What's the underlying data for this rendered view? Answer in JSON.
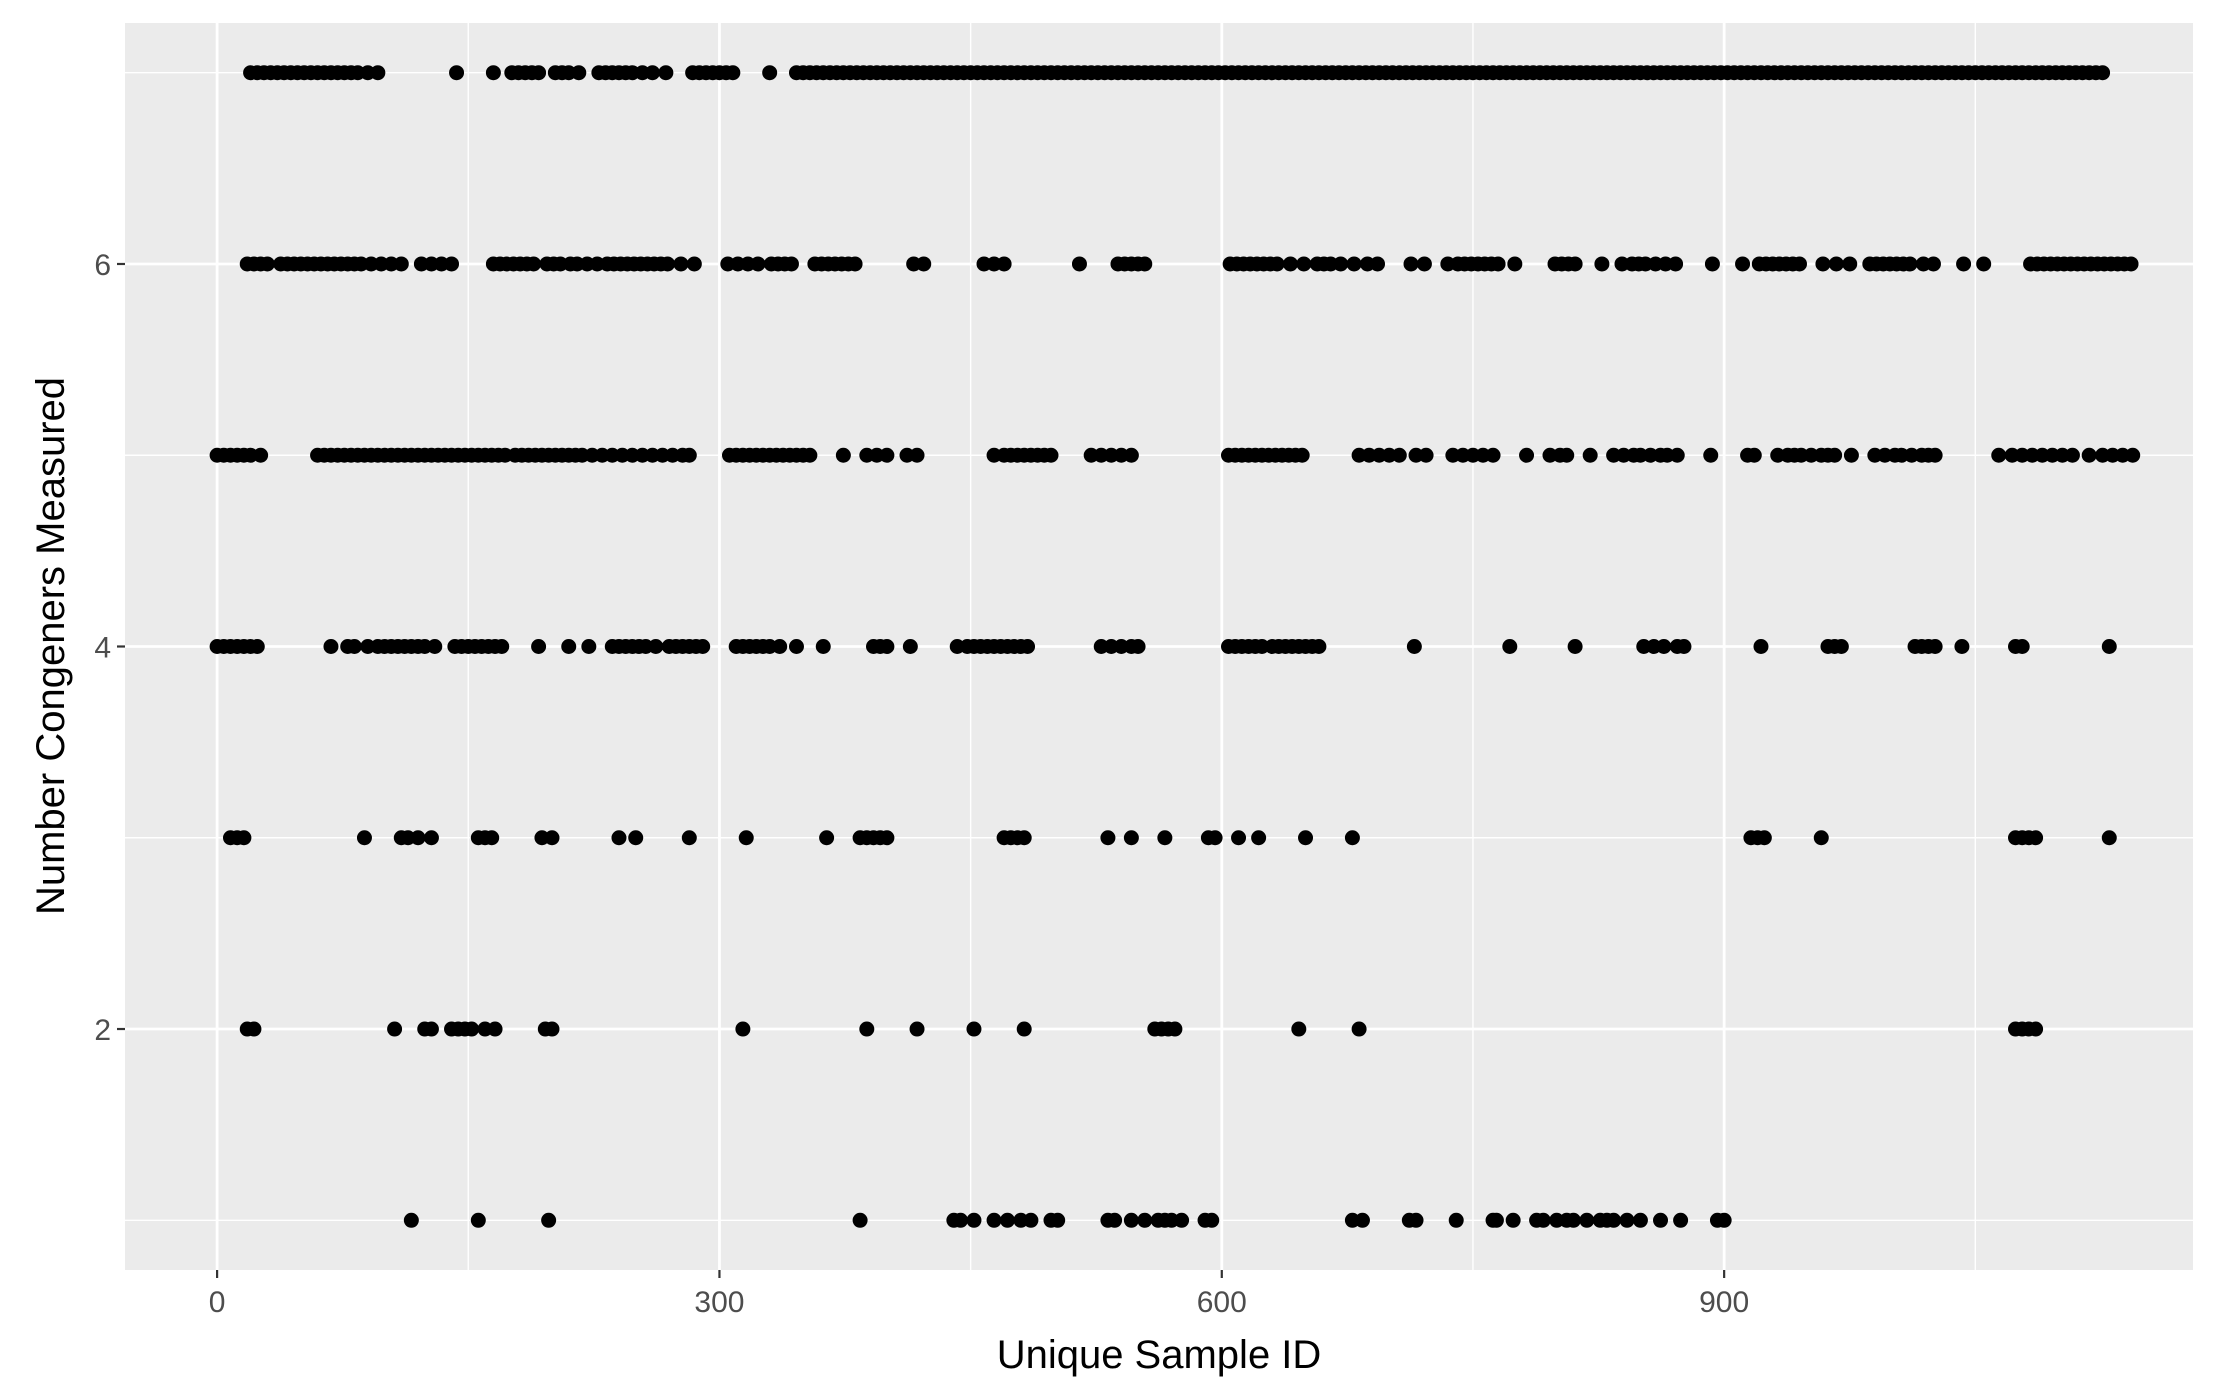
{
  "chart_data": {
    "type": "scatter",
    "title": "",
    "xlabel": "Unique Sample ID",
    "ylabel": "Number Congeners Measured",
    "xlim": [
      -55,
      1180
    ],
    "ylim": [
      0.74,
      7.26
    ],
    "x_ticks": [
      0,
      300,
      600,
      900
    ],
    "x_tick_labels": [
      "0",
      "300",
      "600",
      "900"
    ],
    "y_ticks": [
      2,
      4,
      6
    ],
    "y_tick_labels": [
      "2",
      "4",
      "6"
    ],
    "grid": true,
    "legend": "none",
    "colors": {
      "panel": "#ebebeb",
      "grid": "#ffffff",
      "point": "#000000",
      "tick_text": "#4d4d4d"
    },
    "series": [
      {
        "y": 7,
        "x": [
          20,
          24,
          28,
          32,
          36,
          40,
          44,
          48,
          52,
          56,
          60,
          64,
          68,
          72,
          76,
          80,
          84,
          90,
          96,
          143,
          165,
          176,
          180,
          184,
          188,
          192,
          202,
          206,
          210,
          216,
          228,
          232,
          236,
          240,
          244,
          248,
          254,
          260,
          268,
          284,
          288,
          292,
          296,
          300,
          304,
          308,
          330,
          346,
          350,
          354,
          358,
          362,
          366,
          370,
          374,
          378,
          382,
          386,
          390,
          394,
          398,
          402,
          406,
          410,
          414,
          418,
          422,
          426,
          430,
          434,
          438,
          442,
          446,
          450,
          454,
          458,
          462,
          466,
          470,
          474,
          478,
          482,
          486,
          490,
          494,
          498,
          502,
          506,
          510,
          514,
          518,
          522,
          526,
          530,
          534,
          538,
          542,
          546,
          550,
          554,
          558,
          562,
          566,
          570,
          574,
          578,
          582,
          586,
          590,
          594,
          598,
          602,
          606,
          610,
          614,
          618,
          622,
          626,
          630,
          634,
          638,
          642,
          646,
          650,
          654,
          658,
          662,
          666,
          670,
          674,
          678,
          682,
          686,
          690,
          694,
          698,
          702,
          706,
          710,
          714,
          718,
          722,
          726,
          730,
          734,
          738,
          742,
          746,
          750,
          754,
          758,
          762,
          766,
          770,
          774,
          778,
          782,
          786,
          790,
          794,
          798,
          802,
          806,
          810,
          814,
          818,
          822,
          826,
          830,
          834,
          838,
          842,
          846,
          850,
          854,
          858,
          862,
          866,
          870,
          874,
          878,
          882,
          886,
          890,
          894,
          898,
          902,
          906,
          910,
          914,
          918,
          922,
          926,
          930,
          934,
          938,
          942,
          946,
          950,
          954,
          958,
          962,
          966,
          970,
          974,
          978,
          982,
          986,
          990,
          994,
          998,
          1002,
          1006,
          1010,
          1014,
          1018,
          1022,
          1026,
          1030,
          1034,
          1038,
          1042,
          1046,
          1050,
          1054,
          1058,
          1062,
          1066,
          1070,
          1074,
          1078,
          1082,
          1086,
          1090,
          1094,
          1098,
          1102,
          1106,
          1110,
          1114,
          1118,
          1122,
          1126
        ]
      },
      {
        "y": 6,
        "x": [
          18,
          22,
          26,
          30,
          38,
          42,
          46,
          50,
          54,
          58,
          62,
          66,
          70,
          74,
          78,
          82,
          86,
          92,
          98,
          104,
          110,
          122,
          128,
          134,
          140,
          165,
          169,
          173,
          177,
          181,
          185,
          189,
          197,
          201,
          205,
          211,
          215,
          221,
          227,
          233,
          237,
          241,
          245,
          249,
          253,
          257,
          261,
          265,
          269,
          277,
          285,
          305,
          311,
          317,
          323,
          331,
          335,
          339,
          343,
          357,
          361,
          365,
          369,
          373,
          377,
          381,
          416,
          422,
          458,
          464,
          470,
          515,
          538,
          542,
          546,
          550,
          554,
          605,
          609,
          613,
          617,
          621,
          625,
          629,
          633,
          641,
          649,
          657,
          661,
          665,
          671,
          679,
          687,
          693,
          713,
          721,
          735,
          741,
          745,
          749,
          753,
          757,
          761,
          765,
          775,
          799,
          803,
          807,
          811,
          827,
          839,
          845,
          849,
          853,
          859,
          865,
          871,
          893,
          911,
          921,
          925,
          929,
          933,
          937,
          941,
          945,
          959,
          967,
          975,
          987,
          991,
          995,
          999,
          1003,
          1007,
          1011,
          1019,
          1025,
          1043,
          1055,
          1083,
          1087,
          1091,
          1095,
          1099,
          1103,
          1107,
          1111,
          1115,
          1119,
          1123,
          1127,
          1131,
          1135,
          1139,
          1143
        ]
      },
      {
        "y": 5,
        "x": [
          0,
          4,
          8,
          12,
          16,
          20,
          26,
          60,
          64,
          68,
          72,
          76,
          80,
          84,
          88,
          92,
          96,
          100,
          104,
          108,
          112,
          116,
          120,
          124,
          128,
          132,
          136,
          140,
          144,
          148,
          152,
          156,
          160,
          164,
          168,
          172,
          178,
          182,
          186,
          190,
          194,
          198,
          202,
          206,
          210,
          214,
          218,
          224,
          230,
          236,
          242,
          248,
          254,
          260,
          266,
          272,
          278,
          282,
          306,
          310,
          314,
          318,
          322,
          326,
          330,
          334,
          338,
          342,
          346,
          350,
          354,
          374,
          388,
          394,
          400,
          412,
          418,
          464,
          470,
          474,
          478,
          482,
          486,
          490,
          494,
          498,
          522,
          528,
          534,
          540,
          546,
          604,
          608,
          612,
          616,
          620,
          624,
          628,
          632,
          636,
          640,
          644,
          648,
          682,
          688,
          694,
          700,
          706,
          716,
          722,
          738,
          744,
          750,
          756,
          762,
          782,
          796,
          802,
          806,
          820,
          834,
          840,
          846,
          850,
          856,
          862,
          866,
          872,
          892,
          914,
          918,
          932,
          938,
          942,
          946,
          952,
          958,
          962,
          966,
          976,
          990,
          996,
          1002,
          1006,
          1012,
          1018,
          1022,
          1026,
          1064,
          1072,
          1078,
          1084,
          1090,
          1096,
          1102,
          1108,
          1118,
          1126,
          1132,
          1138,
          1144
        ]
      },
      {
        "y": 4,
        "x": [
          0,
          4,
          8,
          12,
          16,
          20,
          24,
          68,
          78,
          82,
          90,
          96,
          100,
          104,
          108,
          112,
          116,
          120,
          124,
          130,
          142,
          146,
          150,
          154,
          158,
          162,
          166,
          170,
          192,
          210,
          222,
          236,
          240,
          244,
          248,
          252,
          256,
          262,
          270,
          274,
          278,
          282,
          286,
          290,
          310,
          314,
          318,
          322,
          326,
          330,
          336,
          346,
          362,
          392,
          396,
          400,
          414,
          442,
          448,
          452,
          456,
          460,
          464,
          468,
          472,
          476,
          480,
          484,
          528,
          534,
          540,
          546,
          550,
          604,
          608,
          612,
          616,
          620,
          624,
          630,
          634,
          638,
          642,
          646,
          650,
          654,
          658,
          715,
          772,
          811,
          852,
          858,
          864,
          872,
          876,
          922,
          962,
          966,
          970,
          1014,
          1018,
          1022,
          1026,
          1042,
          1074,
          1078,
          1130
        ]
      },
      {
        "y": 3,
        "x": [
          8,
          12,
          16,
          88,
          110,
          114,
          120,
          128,
          156,
          160,
          164,
          194,
          200,
          240,
          250,
          282,
          316,
          364,
          384,
          388,
          392,
          396,
          400,
          470,
          474,
          478,
          482,
          532,
          546,
          566,
          592,
          596,
          610,
          622,
          650,
          678,
          916,
          920,
          924,
          958,
          1074,
          1078,
          1082,
          1086,
          1130
        ]
      },
      {
        "y": 2,
        "x": [
          18,
          22,
          106,
          124,
          128,
          140,
          144,
          148,
          152,
          160,
          166,
          196,
          200,
          314,
          388,
          418,
          452,
          482,
          560,
          564,
          568,
          572,
          646,
          682,
          1074,
          1078,
          1082,
          1086
        ]
      },
      {
        "y": 1,
        "x": [
          116,
          156,
          198,
          384,
          440,
          444,
          452,
          464,
          472,
          480,
          486,
          498,
          502,
          532,
          536,
          546,
          554,
          562,
          566,
          570,
          576,
          590,
          594,
          678,
          684,
          712,
          716,
          740,
          762,
          764,
          774,
          788,
          792,
          800,
          806,
          810,
          818,
          826,
          830,
          834,
          842,
          850,
          862,
          874,
          896,
          900
        ]
      }
    ]
  }
}
